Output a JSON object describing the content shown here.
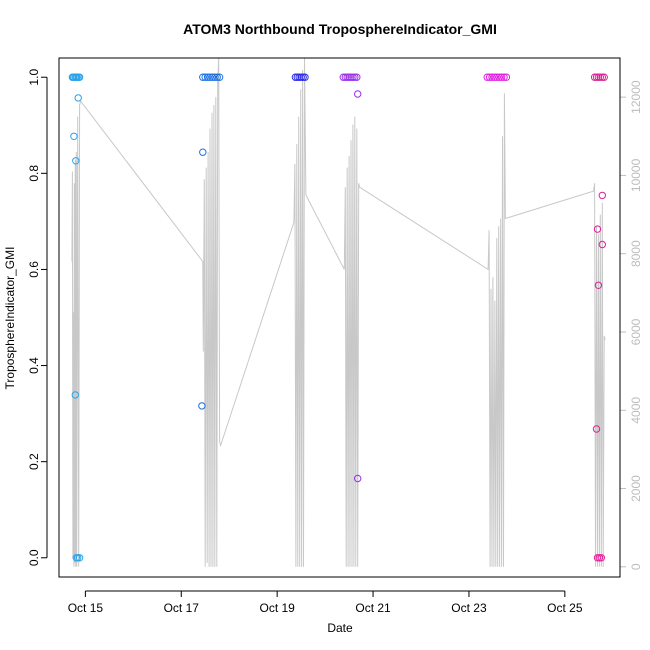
{
  "chart_data": {
    "type": "scatter",
    "title": "ATOM3 Northbound TroposphereIndicator_GMI",
    "xlabel": "Date",
    "ylabel": "TroposphereIndicator_GMI",
    "xlim": [
      14.45,
      26.15
    ],
    "ylim": [
      -0.04,
      1.04
    ],
    "y2lim": [
      -260,
      13000
    ],
    "x_ticks": [
      15,
      17,
      19,
      21,
      23,
      25
    ],
    "x_tick_labels": [
      "Oct 15",
      "Oct 17",
      "Oct 19",
      "Oct 21",
      "Oct 23",
      "Oct 25"
    ],
    "y_ticks": [
      0.0,
      0.2,
      0.4,
      0.6,
      0.8,
      1.0
    ],
    "y_tick_labels": [
      "0.0",
      "0.2",
      "0.4",
      "0.6",
      "0.8",
      "1.0"
    ],
    "y2_ticks": [
      0,
      2000,
      4000,
      6000,
      8000,
      10000,
      12000
    ],
    "y2_tick_labels": [
      "0",
      "2000",
      "4000",
      "6000",
      "8000",
      "10000",
      "12000"
    ],
    "line_color": "#c8c8c8",
    "series": [
      {
        "color": "#29a3e8",
        "x": [
          14.73,
          14.76,
          14.79,
          14.81,
          14.83,
          14.86,
          14.88,
          14.76,
          14.8,
          14.79,
          14.85,
          14.74,
          14.81,
          14.84,
          14.88
        ],
        "y": [
          1.0,
          1.0,
          1.0,
          1.0,
          1.0,
          1.0,
          1.0,
          0.877,
          0.826,
          0.339,
          0.957,
          1.0,
          0.0,
          0.0,
          0.0
        ]
      },
      {
        "color": "#1e6fe0",
        "x": [
          17.45,
          17.5,
          17.55,
          17.6,
          17.65,
          17.7,
          17.75,
          17.8,
          17.45,
          17.43
        ],
        "y": [
          1.0,
          1.0,
          1.0,
          1.0,
          1.0,
          1.0,
          1.0,
          1.0,
          0.844,
          0.316
        ]
      },
      {
        "color": "#2a2ae8",
        "x": [
          19.38,
          19.42,
          19.46,
          19.5,
          19.54,
          19.58
        ],
        "y": [
          1.0,
          1.0,
          1.0,
          1.0,
          1.0,
          1.0
        ]
      },
      {
        "color": "#9a30e8",
        "x": [
          20.38,
          20.42,
          20.46,
          20.5,
          20.54,
          20.58,
          20.62,
          20.66,
          20.68,
          20.68
        ],
        "y": [
          1.0,
          1.0,
          1.0,
          1.0,
          1.0,
          1.0,
          1.0,
          1.0,
          0.965,
          0.165
        ]
      },
      {
        "color": "#e020e0",
        "x": [
          23.38,
          23.43,
          23.48,
          23.53,
          23.58,
          23.63,
          23.68,
          23.73,
          23.78
        ],
        "y": [
          1.0,
          1.0,
          1.0,
          1.0,
          1.0,
          1.0,
          1.0,
          1.0,
          1.0
        ]
      },
      {
        "color": "#e0209a",
        "x": [
          25.62,
          25.66,
          25.7,
          25.74,
          25.78,
          25.82,
          25.68,
          25.7,
          25.78,
          25.66,
          25.68,
          25.76,
          25.72,
          25.78
        ],
        "y": [
          1.0,
          1.0,
          1.0,
          1.0,
          1.0,
          1.0,
          0.684,
          0.567,
          0.652,
          0.268,
          0.0,
          0.0,
          0.0,
          0.754
        ]
      }
    ],
    "line_secondary": {
      "x": [
        14.72,
        14.73,
        14.74,
        14.75,
        14.76,
        14.77,
        14.78,
        14.79,
        14.8,
        14.81,
        14.82,
        14.84,
        14.86,
        14.88,
        14.9,
        17.45,
        17.46,
        17.48,
        17.5,
        17.52,
        17.54,
        17.56,
        17.58,
        17.6,
        17.62,
        17.64,
        17.66,
        17.68,
        17.7,
        17.72,
        17.74,
        17.76,
        17.78,
        17.8,
        17.82,
        19.35,
        19.37,
        19.39,
        19.41,
        19.43,
        19.45,
        19.47,
        19.49,
        19.51,
        19.53,
        19.55,
        19.57,
        19.6,
        20.4,
        20.42,
        20.44,
        20.46,
        20.48,
        20.5,
        20.52,
        20.54,
        20.56,
        20.58,
        20.6,
        20.62,
        20.64,
        20.66,
        20.68,
        20.7,
        20.72,
        23.4,
        23.42,
        23.44,
        23.46,
        23.48,
        23.5,
        23.52,
        23.54,
        23.56,
        23.58,
        23.6,
        23.62,
        23.64,
        23.66,
        23.68,
        23.7,
        23.72,
        23.74,
        23.76,
        25.6,
        25.62,
        25.64,
        25.66,
        25.68,
        25.7,
        25.72,
        25.74,
        25.76,
        25.78,
        25.8,
        25.82,
        25.84
      ],
      "y": [
        7800,
        10100,
        200,
        6500,
        0,
        9800,
        100,
        10400,
        0,
        10600,
        0,
        11500,
        0,
        11800,
        11900,
        7800,
        5500,
        9900,
        0,
        10200,
        100,
        10600,
        0,
        11200,
        0,
        11600,
        0,
        11800,
        0,
        12000,
        0,
        12400,
        13000,
        3200,
        3100,
        8800,
        10300,
        0,
        10800,
        0,
        11500,
        0,
        12200,
        0,
        12700,
        0,
        13000,
        9500,
        7600,
        9700,
        0,
        10200,
        0,
        10500,
        0,
        10900,
        0,
        11300,
        0,
        11500,
        0,
        11200,
        0,
        9800,
        9700,
        7600,
        8600,
        0,
        7100,
        0,
        7400,
        0,
        6800,
        0,
        8400,
        0,
        8700,
        0,
        8900,
        0,
        11000,
        0,
        12100,
        8900,
        9600,
        9800,
        0,
        8700,
        0,
        8500,
        0,
        9000,
        0,
        9300,
        0,
        5900,
        5800
      ]
    }
  }
}
